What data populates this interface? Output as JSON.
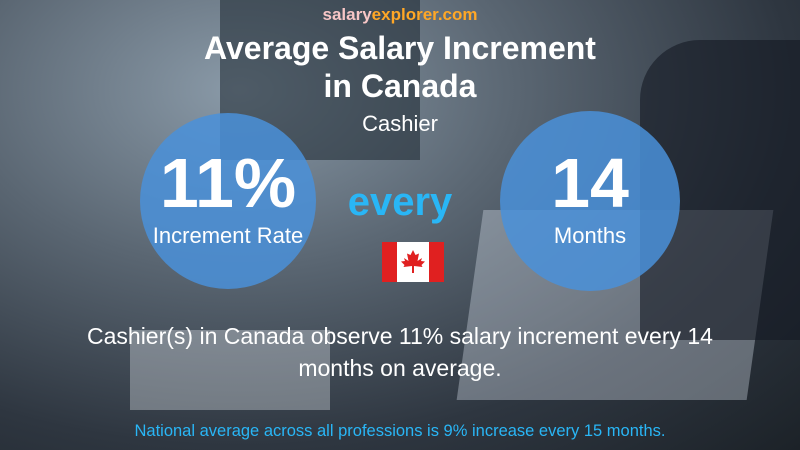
{
  "header": {
    "brand_part1": "salary",
    "brand_part2": "explorer.com",
    "title_line1": "Average Salary Increment",
    "title_line2": "in Canada",
    "subtitle": "Cashier"
  },
  "left_circle": {
    "value": "11%",
    "label": "Increment Rate"
  },
  "connector": "every",
  "right_circle": {
    "value": "14",
    "label": "Months"
  },
  "description": [
    "Cashier(s) in Canada observe 11% salary increment every 14",
    "months on average."
  ],
  "footnote": "National average across all professions is 9% increase every 15 months."
}
